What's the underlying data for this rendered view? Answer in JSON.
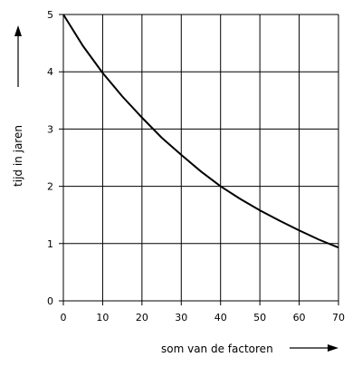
{
  "chart_data": {
    "type": "line",
    "xlabel": "som van de factoren",
    "ylabel": "tijd in jaren",
    "xlim": [
      0,
      70
    ],
    "ylim": [
      0,
      5
    ],
    "x_ticks": [
      "0",
      "10",
      "20",
      "30",
      "40",
      "50",
      "60",
      "70"
    ],
    "y_ticks": [
      "0",
      "1",
      "2",
      "3",
      "4",
      "5"
    ],
    "grid": true,
    "series": [
      {
        "x": [
          0,
          5,
          10,
          15,
          20,
          25,
          30,
          35,
          40,
          45,
          50,
          55,
          60,
          65,
          70
        ],
        "values": [
          5.0,
          4.45,
          3.98,
          3.57,
          3.2,
          2.85,
          2.55,
          2.26,
          2.0,
          1.78,
          1.58,
          1.4,
          1.23,
          1.07,
          0.93
        ]
      }
    ]
  }
}
